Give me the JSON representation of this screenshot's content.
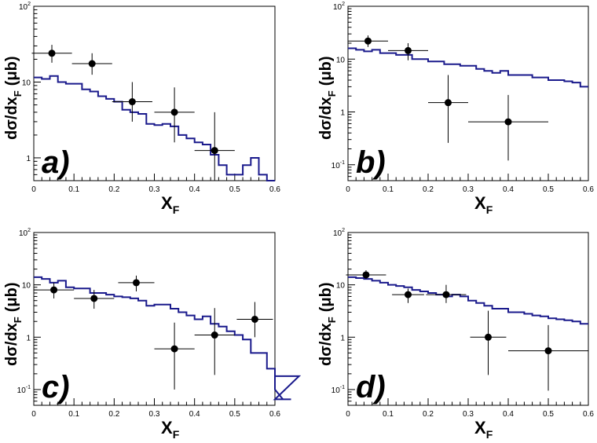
{
  "chart_data": [
    {
      "type": "scatter",
      "panel_label": "a)",
      "xlabel": "X",
      "xlabel_sub": "F",
      "ylabel": "dσ/dx",
      "ylabel_sub": "F",
      "ylabel_unit": "(μb)",
      "xlim": [
        0,
        0.6
      ],
      "ylog_range": [
        0.5,
        100
      ],
      "x_ticks": [
        0,
        0.1,
        0.2,
        0.3,
        0.4,
        0.5,
        0.6
      ],
      "x_tick_labels": [
        "0",
        "0.1",
        "0.2",
        "0.3",
        "0.4",
        "0.5",
        "0.6"
      ],
      "y_ticks": [
        {
          "v": 100,
          "b": "10",
          "e": "2"
        },
        {
          "v": 10,
          "b": "10",
          "e": ""
        },
        {
          "v": 1,
          "b": "1",
          "e": ""
        }
      ],
      "points": [
        {
          "x": 0.045,
          "y": 24,
          "xerr": 0.05,
          "ylo": 18,
          "yhi": 31
        },
        {
          "x": 0.145,
          "y": 17.5,
          "xerr": 0.05,
          "ylo": 12.5,
          "yhi": 24
        },
        {
          "x": 0.245,
          "y": 5.5,
          "xerr": 0.05,
          "ylo": 3.0,
          "yhi": 10
        },
        {
          "x": 0.35,
          "y": 4.0,
          "xerr": 0.05,
          "ylo": 1.6,
          "yhi": 8.5
        },
        {
          "x": 0.45,
          "y": 1.25,
          "xerr": 0.05,
          "ylo": 0.5,
          "yhi": 4.0
        }
      ],
      "mc_histogram": {
        "bin_width": 0.02,
        "values": [
          11.5,
          11,
          12,
          10,
          9.5,
          9.5,
          8,
          7.5,
          6.5,
          6,
          5.5,
          4.3,
          4,
          3.8,
          2.8,
          2.7,
          2.8,
          2.6,
          2,
          1.8,
          1.6,
          1.5,
          1.1,
          0.8,
          0.6,
          0.6,
          0.8,
          1.0,
          0.6,
          0.5
        ]
      }
    },
    {
      "type": "scatter",
      "panel_label": "b)",
      "xlabel": "X",
      "xlabel_sub": "F",
      "ylabel": "dσ/dx",
      "ylabel_sub": "F",
      "ylabel_unit": "(μb)",
      "xlim": [
        0,
        0.6
      ],
      "ylog_range": [
        0.05,
        100
      ],
      "x_ticks": [
        0,
        0.1,
        0.2,
        0.3,
        0.4,
        0.5,
        0.6
      ],
      "x_tick_labels": [
        "0",
        "0.1",
        "0.2",
        "0.3",
        "0.4",
        "0.5",
        "0.6"
      ],
      "y_ticks": [
        {
          "v": 100,
          "b": "10",
          "e": "2"
        },
        {
          "v": 10,
          "b": "10",
          "e": ""
        },
        {
          "v": 1,
          "b": "1",
          "e": ""
        },
        {
          "v": 0.1,
          "b": "10",
          "e": "-1"
        }
      ],
      "points": [
        {
          "x": 0.05,
          "y": 22,
          "xerr": 0.05,
          "ylo": 17,
          "yhi": 28
        },
        {
          "x": 0.15,
          "y": 14.5,
          "xerr": 0.05,
          "ylo": 9.5,
          "yhi": 20
        },
        {
          "x": 0.25,
          "y": 1.5,
          "xerr": 0.05,
          "ylo": 0.26,
          "yhi": 5.0
        },
        {
          "x": 0.4,
          "y": 0.65,
          "xerr": 0.1,
          "ylo": 0.12,
          "yhi": 2.1
        }
      ],
      "mc_histogram": {
        "bin_width": 0.02,
        "values": [
          16,
          15,
          14,
          15,
          13,
          13,
          12,
          12,
          10,
          10,
          9,
          9,
          8,
          8,
          7.5,
          7.5,
          6.5,
          6,
          5.5,
          6,
          5,
          5,
          5,
          4.5,
          4.5,
          4,
          4,
          3.8,
          3.6,
          3
        ]
      }
    },
    {
      "type": "scatter",
      "panel_label": "c)",
      "xlabel": "X",
      "xlabel_sub": "F",
      "ylabel": "dσ/dx",
      "ylabel_sub": "F",
      "ylabel_unit": "(μb)",
      "xlim": [
        0,
        0.6
      ],
      "ylog_range": [
        0.05,
        100
      ],
      "x_ticks": [
        0,
        0.1,
        0.2,
        0.3,
        0.4,
        0.5,
        0.6
      ],
      "x_tick_labels": [
        "0",
        "0.1",
        "0.2",
        "0.3",
        "0.4",
        "0.5",
        "0.6"
      ],
      "y_ticks": [
        {
          "v": 100,
          "b": "10",
          "e": "2"
        },
        {
          "v": 10,
          "b": "10",
          "e": ""
        },
        {
          "v": 1,
          "b": "1",
          "e": ""
        },
        {
          "v": 0.1,
          "b": "10",
          "e": "-1"
        }
      ],
      "points": [
        {
          "x": 0.05,
          "y": 8,
          "xerr": 0.05,
          "ylo": 5.5,
          "yhi": 11
        },
        {
          "x": 0.15,
          "y": 5.5,
          "xerr": 0.05,
          "ylo": 3.5,
          "yhi": 8
        },
        {
          "x": 0.255,
          "y": 11,
          "xerr": 0.045,
          "ylo": 7.5,
          "yhi": 15
        },
        {
          "x": 0.35,
          "y": 0.6,
          "xerr": 0.05,
          "ylo": 0.1,
          "yhi": 1.9
        },
        {
          "x": 0.45,
          "y": 1.1,
          "xerr": 0.05,
          "ylo": 0.19,
          "yhi": 3.6
        },
        {
          "x": 0.55,
          "y": 2.2,
          "xerr": 0.045,
          "ylo": 1.0,
          "yhi": 4.7
        }
      ],
      "mc_histogram": {
        "bin_width": 0.02,
        "values": [
          14,
          13,
          11,
          12,
          9,
          8.5,
          8.5,
          7,
          7,
          6.5,
          6,
          5.8,
          5.5,
          5,
          4,
          4.2,
          4.2,
          3.5,
          3,
          2.6,
          2.2,
          2.5,
          1.8,
          1.6,
          1.3,
          1.1,
          0.9,
          0.5,
          0.5,
          0.25,
          0.1,
          0.065,
          0.065,
          0.18
        ]
      }
    },
    {
      "type": "scatter",
      "panel_label": "d)",
      "xlabel": "X",
      "xlabel_sub": "F",
      "ylabel": "dσ/dx",
      "ylabel_sub": "F",
      "ylabel_unit": "(μb)",
      "xlim": [
        0,
        0.6
      ],
      "ylog_range": [
        0.05,
        100
      ],
      "x_ticks": [
        0,
        0.1,
        0.2,
        0.3,
        0.4,
        0.5,
        0.6
      ],
      "x_tick_labels": [
        "0",
        "0.1",
        "0.2",
        "0.3",
        "0.4",
        "0.5",
        "0.6"
      ],
      "y_ticks": [
        {
          "v": 100,
          "b": "10",
          "e": "2"
        },
        {
          "v": 10,
          "b": "10",
          "e": ""
        },
        {
          "v": 1,
          "b": "1",
          "e": ""
        },
        {
          "v": 0.1,
          "b": "10",
          "e": "-1"
        }
      ],
      "points": [
        {
          "x": 0.045,
          "y": 15.5,
          "xerr": 0.05,
          "ylo": 13,
          "yhi": 19
        },
        {
          "x": 0.15,
          "y": 6.5,
          "xerr": 0.04,
          "ylo": 4.5,
          "yhi": 8.5
        },
        {
          "x": 0.245,
          "y": 6.5,
          "xerr": 0.05,
          "ylo": 4.5,
          "yhi": 10
        },
        {
          "x": 0.35,
          "y": 1.0,
          "xerr": 0.045,
          "ylo": 0.19,
          "yhi": 3.2
        },
        {
          "x": 0.5,
          "y": 0.55,
          "xerr": 0.1,
          "ylo": 0.095,
          "yhi": 1.7
        }
      ],
      "mc_histogram": {
        "bin_width": 0.02,
        "values": [
          14,
          13.5,
          13,
          12,
          11,
          10,
          9.5,
          9,
          8,
          7.5,
          7,
          6.5,
          6,
          6.5,
          6,
          5,
          4.5,
          4,
          3.5,
          3.5,
          3,
          3,
          2.8,
          2.6,
          2.5,
          2.3,
          2.2,
          2.1,
          2,
          1.8
        ]
      }
    }
  ],
  "colors": {
    "histogram": "#1a1a8c",
    "points": "#000000",
    "axes": "#000000"
  }
}
